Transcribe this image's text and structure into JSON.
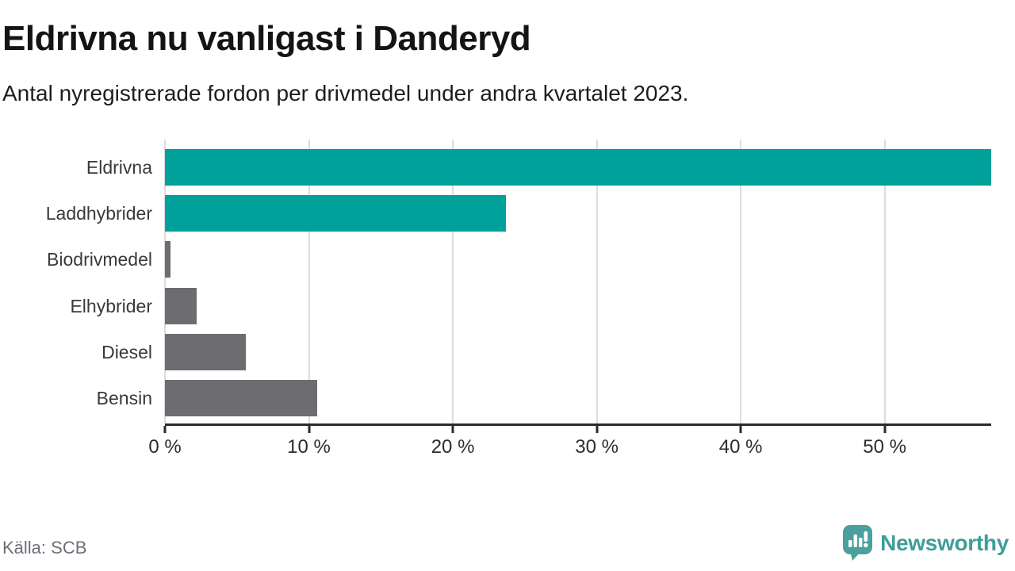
{
  "chart_data": {
    "type": "bar",
    "orientation": "horizontal",
    "title": "Eldrivna nu vanligast i Danderyd",
    "subtitle": "Antal nyregistrerade fordon per drivmedel under andra kvartalet 2023.",
    "categories": [
      "Eldrivna",
      "Laddhybrider",
      "Biodrivmedel",
      "Elhybrider",
      "Diesel",
      "Bensin"
    ],
    "values": [
      57.4,
      23.7,
      0.4,
      2.2,
      5.6,
      10.6
    ],
    "unit": "%",
    "xlabel": "",
    "ylabel": "",
    "xlim": [
      0,
      57.4
    ],
    "x_tick_values": [
      0,
      10,
      20,
      30,
      40,
      50
    ],
    "x_tick_labels": [
      "0 %",
      "10 %",
      "20 %",
      "30 %",
      "40 %",
      "50 %"
    ],
    "grid": true,
    "legend": false,
    "bar_colors": [
      "#00a19a",
      "#00a19a",
      "#6c6c71",
      "#6c6c71",
      "#6c6c71",
      "#6c6c71"
    ]
  },
  "colors": {
    "accent_teal": "#00a19a",
    "bar_gray": "#6c6c71",
    "gridline": "#dcdcde",
    "axis": "#2b2b2b",
    "logo_teal": "#4ba09d",
    "wordmark_teal": "#3f9d9a"
  },
  "footer": {
    "source": "Källa: SCB",
    "brand": "Newsworthy"
  }
}
